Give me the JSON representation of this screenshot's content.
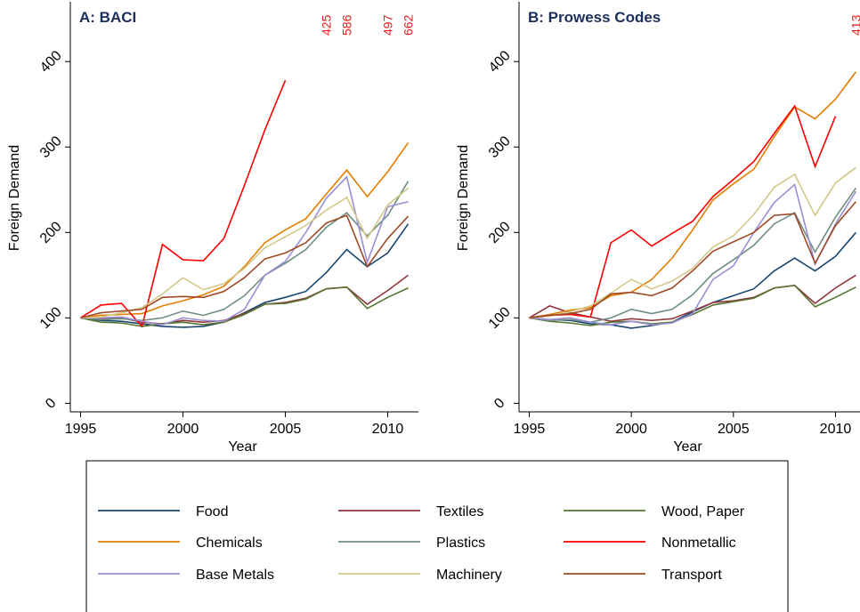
{
  "chart_data": [
    {
      "type": "line",
      "title": "A: BACI",
      "xlabel": "Year",
      "ylabel": "Foreign Demand",
      "x": [
        1995,
        1996,
        1997,
        1998,
        1999,
        2000,
        2001,
        2002,
        2003,
        2004,
        2005,
        2006,
        2007,
        2008,
        2009,
        2010,
        2011
      ],
      "xlim": [
        1994.5,
        2011.5
      ],
      "xticks": [
        1995,
        2000,
        2005,
        2010
      ],
      "ylim": [
        -10,
        470
      ],
      "yticks": [
        0,
        100,
        200,
        300,
        400
      ],
      "series": [
        {
          "name": "Food",
          "color": "#1a476f",
          "values": [
            100,
            97,
            96,
            93,
            90,
            89,
            90,
            95,
            106,
            118,
            124,
            131,
            153,
            180,
            160,
            176,
            210
          ]
        },
        {
          "name": "Textiles",
          "color": "#90353b",
          "values": [
            100,
            99,
            100,
            95,
            93,
            97,
            95,
            97,
            105,
            116,
            118,
            123,
            134,
            136,
            116,
            132,
            150
          ]
        },
        {
          "name": "Wood, Paper",
          "color": "#55752f",
          "values": [
            100,
            95,
            94,
            90,
            93,
            95,
            92,
            95,
            104,
            116,
            117,
            122,
            134,
            136,
            111,
            124,
            135
          ]
        },
        {
          "name": "Chemicals",
          "color": "#e37e00",
          "values": [
            100,
            103,
            104,
            105,
            114,
            120,
            127,
            137,
            160,
            188,
            203,
            216,
            245,
            273,
            242,
            271,
            305
          ]
        },
        {
          "name": "Plastics",
          "color": "#6e8e84",
          "values": [
            100,
            98,
            99,
            97,
            100,
            108,
            103,
            110,
            126,
            150,
            164,
            180,
            206,
            223,
            196,
            220,
            260
          ]
        },
        {
          "name": "Nonmetallic",
          "color": "#ff0000",
          "values": [
            100,
            115,
            117,
            90,
            186,
            168,
            167,
            193,
            255,
            320,
            378,
            null,
            null,
            null,
            null,
            null,
            null
          ]
        },
        {
          "name": "Base Metals",
          "color": "#9a8fd4",
          "values": [
            100,
            100,
            101,
            96,
            92,
            100,
            97,
            96,
            110,
            150,
            166,
            200,
            240,
            265,
            165,
            230,
            236
          ]
        },
        {
          "name": "Machinery",
          "color": "#d4c88a",
          "values": [
            100,
            101,
            106,
            112,
            128,
            147,
            133,
            140,
            158,
            182,
            195,
            208,
            226,
            241,
            193,
            232,
            252
          ]
        },
        {
          "name": "Transport",
          "color": "#9e4a26",
          "values": [
            100,
            106,
            108,
            110,
            124,
            125,
            124,
            131,
            147,
            169,
            176,
            188,
            211,
            220,
            160,
            193,
            219
          ]
        }
      ],
      "annotations": [
        {
          "x": 2007,
          "value": 425
        },
        {
          "x": 2008,
          "value": 586
        },
        {
          "x": 2010,
          "value": 497
        },
        {
          "x": 2011,
          "value": 662
        }
      ]
    },
    {
      "type": "line",
      "title": "B: Prowess Codes",
      "xlabel": "Year",
      "ylabel": "Foreign Demand",
      "x": [
        1995,
        1996,
        1997,
        1998,
        1999,
        2000,
        2001,
        2002,
        2003,
        2004,
        2005,
        2006,
        2007,
        2008,
        2009,
        2010,
        2011
      ],
      "xlim": [
        1994.5,
        2011.2
      ],
      "xticks": [
        1995,
        2000,
        2005,
        2010
      ],
      "ylim": [
        -10,
        470
      ],
      "yticks": [
        0,
        100,
        200,
        300,
        400
      ],
      "series": [
        {
          "name": "Food",
          "color": "#1a476f",
          "values": [
            100,
            98,
            97,
            93,
            92,
            88,
            91,
            95,
            107,
            118,
            126,
            134,
            155,
            170,
            155,
            172,
            200
          ]
        },
        {
          "name": "Textiles",
          "color": "#90353b",
          "values": [
            100,
            114,
            106,
            101,
            96,
            99,
            97,
            99,
            108,
            118,
            120,
            124,
            135,
            138,
            117,
            135,
            150
          ]
        },
        {
          "name": "Wood, Paper",
          "color": "#55752f",
          "values": [
            100,
            96,
            94,
            91,
            95,
            96,
            93,
            95,
            104,
            115,
            119,
            123,
            135,
            138,
            113,
            124,
            136
          ]
        },
        {
          "name": "Chemicals",
          "color": "#e37e00",
          "values": [
            100,
            104,
            109,
            112,
            126,
            130,
            145,
            170,
            203,
            238,
            257,
            274,
            312,
            347,
            333,
            356,
            388
          ]
        },
        {
          "name": "Plastics",
          "color": "#6e8e84",
          "values": [
            100,
            97,
            98,
            95,
            100,
            110,
            105,
            110,
            127,
            152,
            168,
            185,
            210,
            223,
            177,
            218,
            252
          ]
        },
        {
          "name": "Nonmetallic",
          "color": "#ff0000",
          "values": [
            100,
            103,
            104,
            101,
            188,
            203,
            184,
            199,
            213,
            242,
            262,
            283,
            316,
            348,
            277,
            336,
            null
          ]
        },
        {
          "name": "Base Metals",
          "color": "#9a8fd4",
          "values": [
            100,
            98,
            100,
            95,
            92,
            96,
            92,
            94,
            105,
            145,
            161,
            200,
            235,
            256,
            163,
            210,
            248
          ]
        },
        {
          "name": "Machinery",
          "color": "#d4c88a",
          "values": [
            100,
            102,
            107,
            114,
            129,
            145,
            134,
            143,
            158,
            183,
            196,
            221,
            253,
            268,
            220,
            258,
            276
          ]
        },
        {
          "name": "Transport",
          "color": "#9e4a26",
          "values": [
            100,
            103,
            105,
            110,
            128,
            130,
            126,
            135,
            155,
            178,
            189,
            200,
            220,
            222,
            164,
            208,
            236
          ]
        }
      ],
      "annotations": [
        {
          "x": 2011,
          "value": 413
        }
      ]
    }
  ]
}
